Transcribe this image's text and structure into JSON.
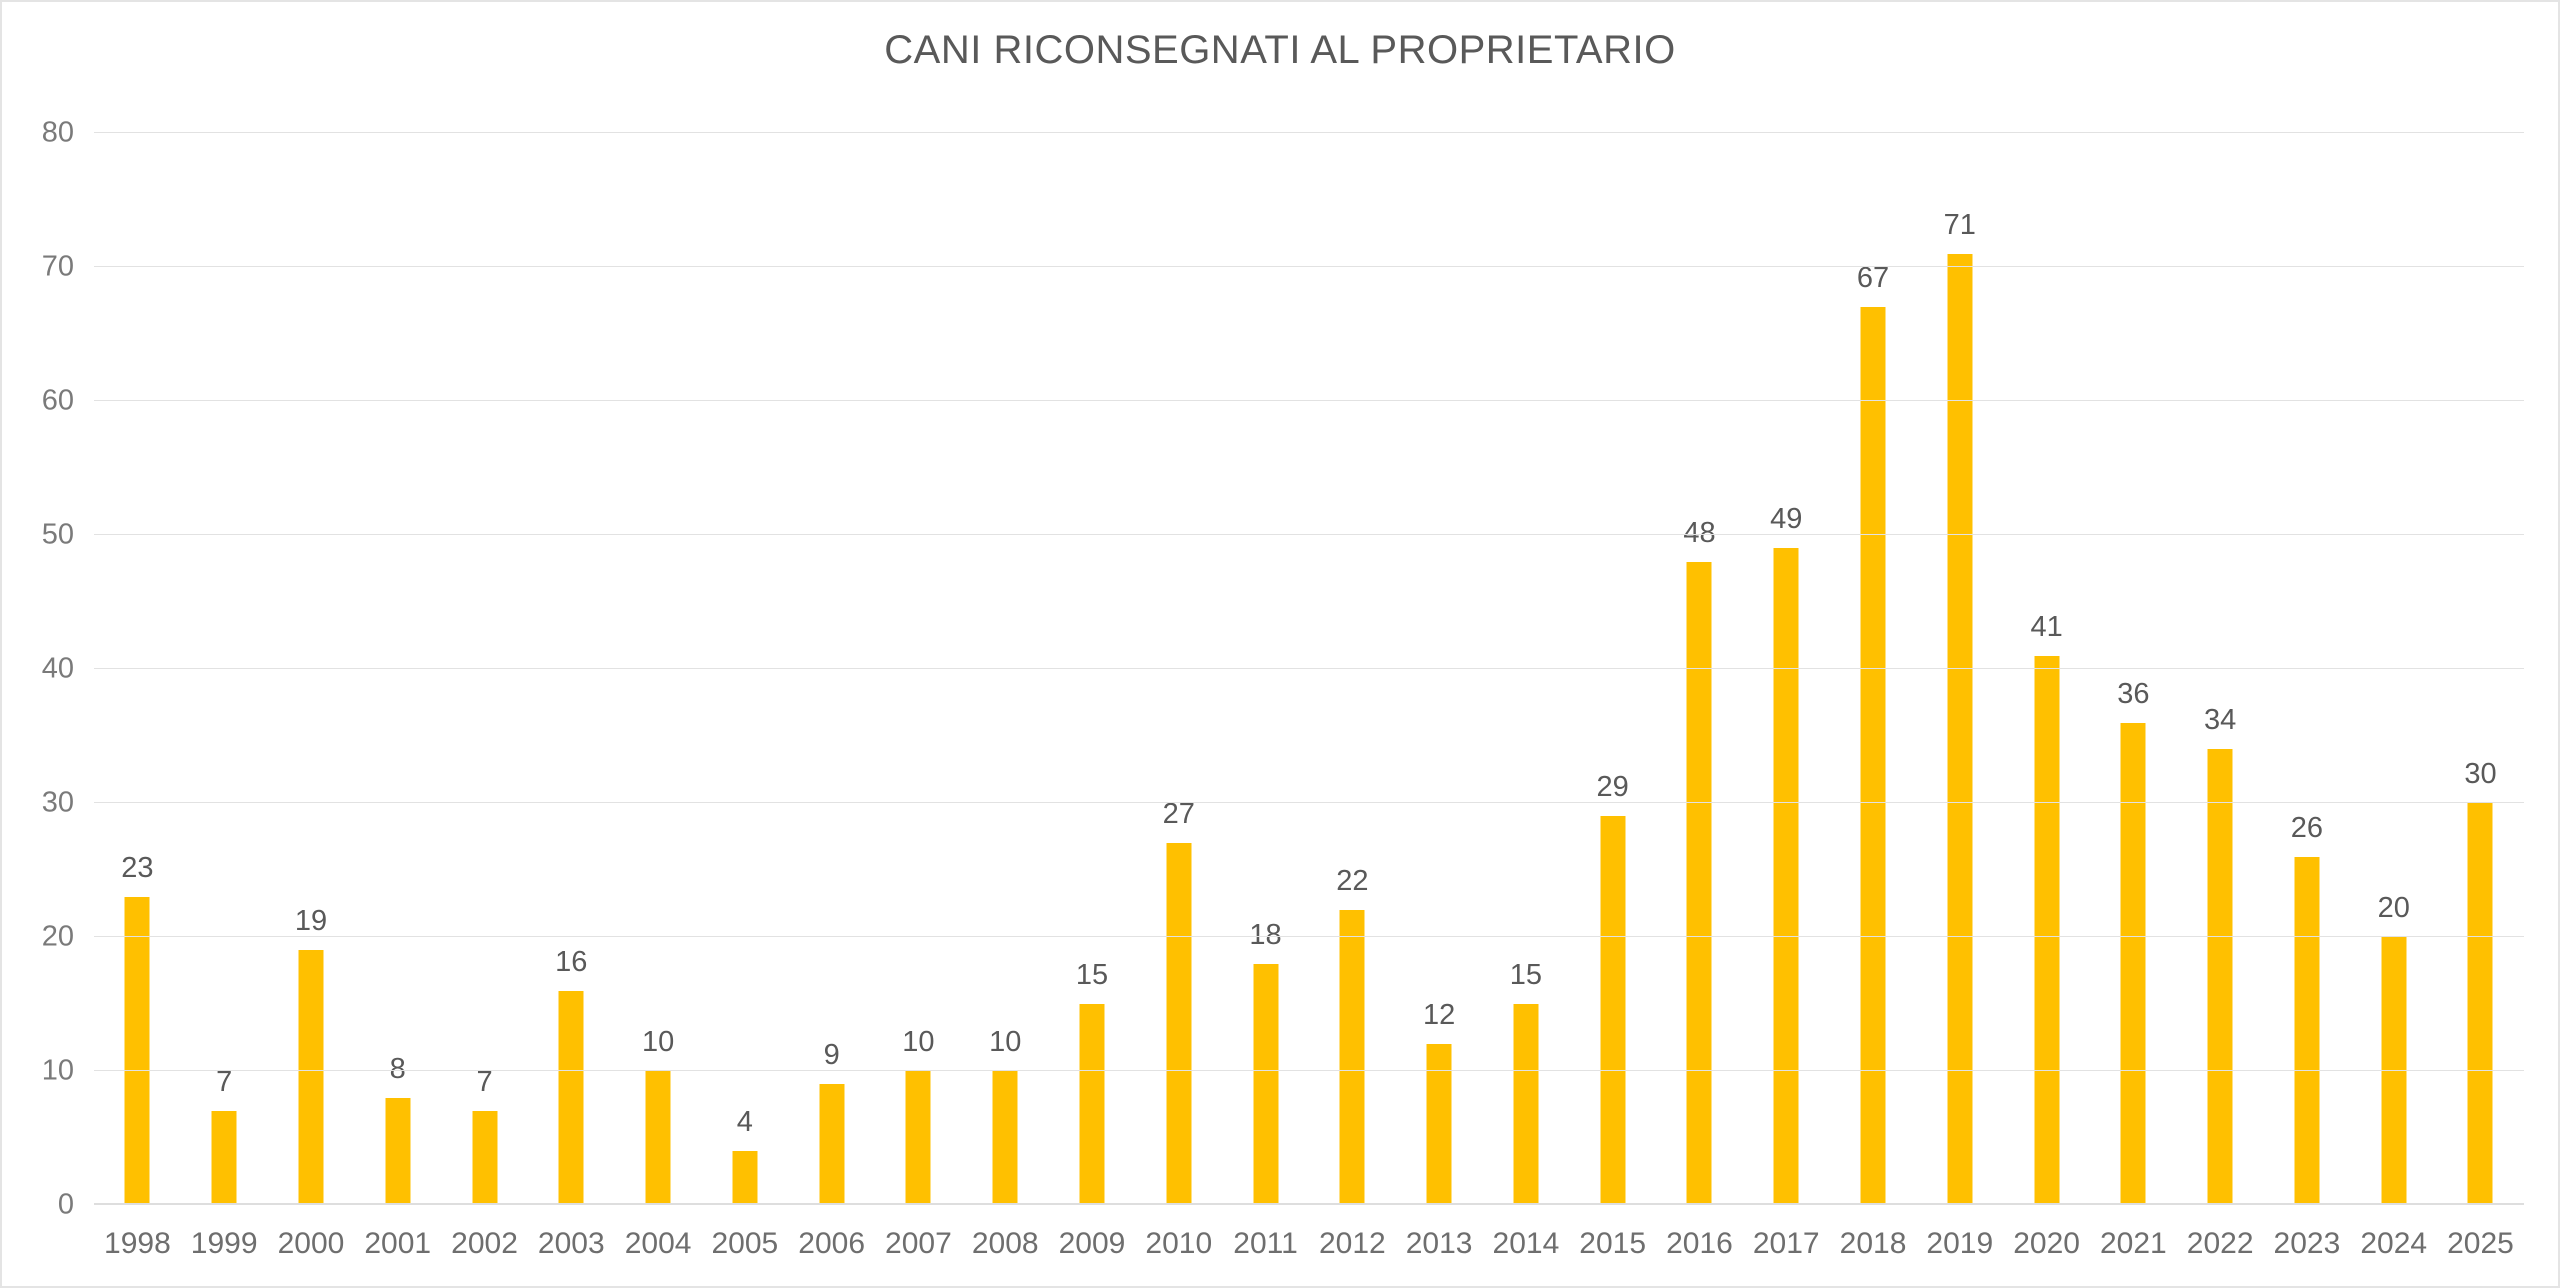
{
  "chart_data": {
    "type": "bar",
    "title": "CANI RICONSEGNATI AL PROPRIETARIO",
    "categories": [
      "1998",
      "1999",
      "2000",
      "2001",
      "2002",
      "2003",
      "2004",
      "2005",
      "2006",
      "2007",
      "2008",
      "2009",
      "2010",
      "2011",
      "2012",
      "2013",
      "2014",
      "2015",
      "2016",
      "2017",
      "2018",
      "2019",
      "2020",
      "2021",
      "2022",
      "2023",
      "2024",
      "2025"
    ],
    "values": [
      23,
      7,
      19,
      8,
      7,
      16,
      10,
      4,
      9,
      10,
      10,
      15,
      27,
      18,
      22,
      12,
      15,
      29,
      48,
      49,
      67,
      71,
      41,
      36,
      34,
      26,
      20,
      30
    ],
    "xlabel": "",
    "ylabel": "",
    "ylim": [
      0,
      80
    ],
    "ytick_step": 10,
    "ytick_labels": [
      "0",
      "10",
      "20",
      "30",
      "40",
      "50",
      "60",
      "70",
      "80"
    ],
    "grid": true,
    "legend": "none",
    "data_labels": true,
    "colors": {
      "bar_fill": "#FFC000",
      "title_text": "#595959",
      "data_label_text": "#595959",
      "axis_tick_text": "#757575",
      "gridline": "#DEDEDE",
      "frame_border": "#E4E4E4",
      "background": "#FFFFFF"
    }
  }
}
